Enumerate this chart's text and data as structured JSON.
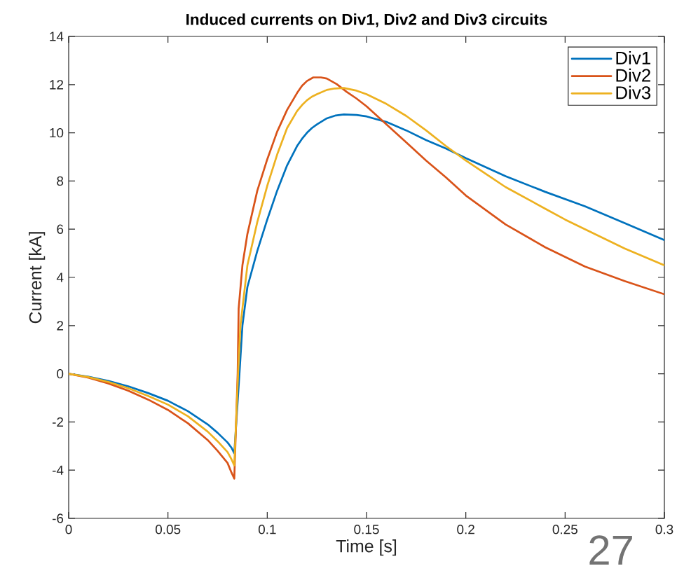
{
  "chart_data": {
    "type": "line",
    "title": "Induced currents on Div1, Div2 and Div3 circuits",
    "xlabel": "Time [s]",
    "ylabel": "Current [kA]",
    "xlim": [
      0,
      0.3
    ],
    "ylim": [
      -6,
      14
    ],
    "xticks": [
      0,
      0.05,
      0.1,
      0.15,
      0.2,
      0.25,
      0.3
    ],
    "yticks": [
      -6,
      -4,
      -2,
      0,
      2,
      4,
      6,
      8,
      10,
      12,
      14
    ],
    "legend": "top right",
    "annotations": [
      "27"
    ],
    "series": [
      {
        "name": "Div1",
        "color": "#0072bd",
        "x": [
          0,
          0.01,
          0.02,
          0.03,
          0.04,
          0.05,
          0.06,
          0.07,
          0.075,
          0.08,
          0.082,
          0.0834,
          0.086,
          0.0875,
          0.09,
          0.095,
          0.1,
          0.105,
          0.11,
          0.115,
          0.1175,
          0.12,
          0.1225,
          0.125,
          0.13,
          0.1345,
          0.1386,
          0.145,
          0.15,
          0.16,
          0.17,
          0.18,
          0.19,
          0.2,
          0.22,
          0.24,
          0.25,
          0.26,
          0.28,
          0.3
        ],
        "values": [
          0,
          -0.12,
          -0.3,
          -0.52,
          -0.8,
          -1.12,
          -1.55,
          -2.1,
          -2.45,
          -2.85,
          -3.07,
          -3.3,
          0,
          2.0,
          3.6,
          5.1,
          6.4,
          7.6,
          8.65,
          9.45,
          9.75,
          10.0,
          10.2,
          10.35,
          10.6,
          10.72,
          10.76,
          10.74,
          10.68,
          10.45,
          10.1,
          9.7,
          9.35,
          8.95,
          8.2,
          7.55,
          7.25,
          6.95,
          6.25,
          5.55
        ]
      },
      {
        "name": "Div2",
        "color": "#d95319",
        "x": [
          0,
          0.01,
          0.02,
          0.03,
          0.04,
          0.05,
          0.06,
          0.07,
          0.075,
          0.08,
          0.082,
          0.0834,
          0.0851,
          0.0856,
          0.0875,
          0.09,
          0.095,
          0.1,
          0.105,
          0.11,
          0.115,
          0.1175,
          0.12,
          0.1232,
          0.127,
          0.13,
          0.135,
          0.14,
          0.145,
          0.15,
          0.16,
          0.17,
          0.18,
          0.19,
          0.2,
          0.22,
          0.24,
          0.25,
          0.26,
          0.28,
          0.3
        ],
        "values": [
          0,
          -0.16,
          -0.4,
          -0.7,
          -1.07,
          -1.5,
          -2.05,
          -2.75,
          -3.2,
          -3.7,
          -4.1,
          -4.35,
          0,
          2.7,
          4.5,
          5.8,
          7.6,
          8.9,
          10.05,
          10.95,
          11.65,
          11.95,
          12.15,
          12.3,
          12.3,
          12.25,
          12.02,
          11.7,
          11.42,
          11.1,
          10.35,
          9.6,
          8.85,
          8.15,
          7.4,
          6.2,
          5.25,
          4.85,
          4.45,
          3.85,
          3.3
        ]
      },
      {
        "name": "Div3",
        "color": "#edb120",
        "x": [
          0,
          0.01,
          0.02,
          0.03,
          0.04,
          0.05,
          0.06,
          0.07,
          0.075,
          0.08,
          0.082,
          0.0834,
          0.0853,
          0.0865,
          0.09,
          0.095,
          0.1,
          0.105,
          0.11,
          0.115,
          0.1175,
          0.12,
          0.1225,
          0.125,
          0.13,
          0.134,
          0.1386,
          0.145,
          0.15,
          0.16,
          0.17,
          0.18,
          0.19,
          0.2,
          0.22,
          0.24,
          0.25,
          0.26,
          0.28,
          0.3
        ],
        "values": [
          0,
          -0.14,
          -0.34,
          -0.6,
          -0.92,
          -1.28,
          -1.76,
          -2.4,
          -2.8,
          -3.25,
          -3.55,
          -3.8,
          0,
          2.0,
          4.5,
          6.3,
          7.8,
          9.1,
          10.2,
          10.9,
          11.15,
          11.35,
          11.5,
          11.6,
          11.78,
          11.84,
          11.86,
          11.75,
          11.6,
          11.2,
          10.7,
          10.1,
          9.45,
          8.85,
          7.75,
          6.85,
          6.4,
          6.0,
          5.2,
          4.5
        ]
      }
    ]
  }
}
